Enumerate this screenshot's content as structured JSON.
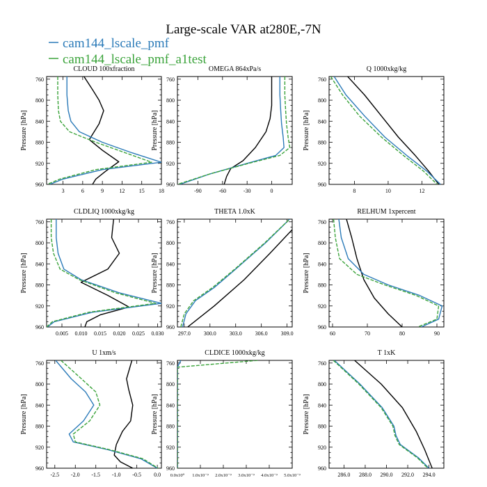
{
  "figure": {
    "title": "Large-scale VAR at280E,-7N",
    "legend": [
      {
        "name": "cam144_lscale_pmf",
        "color": "#2a7ab8"
      },
      {
        "name": "cam144_lscale_pmf_a1test",
        "color": "#3aa33a"
      }
    ]
  },
  "chart_data": [
    {
      "type": "line",
      "title": "CLOUD  100xfraction",
      "ylabel": "Pressure [hPa]",
      "xlim": [
        0.5,
        18
      ],
      "ylim": [
        960,
        755
      ],
      "xticks": [
        3,
        6,
        9,
        12,
        15,
        18
      ],
      "xtick_labels": [
        "3",
        "6",
        "9",
        "12",
        "15",
        "18"
      ],
      "yticks": [
        760,
        800,
        840,
        880,
        920,
        960
      ],
      "series": [
        {
          "color": "#000000",
          "x": [
            6.2,
            7.5,
            8.5,
            9.2,
            8.5,
            7.0,
            9.0,
            11.5,
            9.5,
            8.0,
            7.5
          ],
          "y": [
            755,
            780,
            800,
            820,
            845,
            875,
            895,
            917,
            935,
            950,
            960
          ]
        },
        {
          "color": "#2a7ab8",
          "x": [
            3.6,
            3.6,
            3.8,
            4.2,
            5.5,
            9.0,
            13.5,
            18.0,
            9.0,
            3.0,
            1.0
          ],
          "y": [
            755,
            790,
            820,
            840,
            860,
            880,
            900,
            918,
            932,
            950,
            960
          ]
        },
        {
          "color": "#3aa33a",
          "dash": "5,2",
          "x": [
            2.2,
            2.2,
            2.3,
            2.6,
            4.0,
            8.0,
            12.5,
            16.5,
            8.0,
            2.5,
            0.6
          ],
          "y": [
            755,
            790,
            820,
            840,
            860,
            880,
            900,
            918,
            932,
            950,
            960
          ]
        }
      ]
    },
    {
      "type": "line",
      "title": "OMEGA  864xPa/s",
      "ylabel": "Pressure [hPa]",
      "xlim": [
        -115,
        25
      ],
      "ylim": [
        960,
        755
      ],
      "xticks": [
        -90,
        -60,
        -30,
        0
      ],
      "xtick_labels": [
        "-90",
        "-60",
        "-30",
        "0"
      ],
      "yticks": [
        760,
        800,
        840,
        880,
        920,
        960
      ],
      "series": [
        {
          "color": "#000000",
          "x": [
            0,
            0,
            0,
            -2,
            -7,
            -20,
            -35,
            -50,
            -55,
            -58
          ],
          "y": [
            755,
            790,
            810,
            835,
            860,
            890,
            915,
            930,
            945,
            960
          ]
        },
        {
          "color": "#2a7ab8",
          "x": [
            10,
            10,
            11,
            12,
            14,
            15,
            5,
            -30,
            -75,
            -112
          ],
          "y": [
            755,
            790,
            820,
            845,
            870,
            890,
            905,
            920,
            940,
            960
          ]
        },
        {
          "color": "#3aa33a",
          "dash": "5,2",
          "x": [
            16,
            16,
            17,
            18,
            20,
            22,
            10,
            -28,
            -75,
            -115
          ],
          "y": [
            755,
            790,
            820,
            845,
            870,
            890,
            905,
            920,
            940,
            960
          ]
        }
      ]
    },
    {
      "type": "line",
      "title": "Q  1000xkg/kg",
      "ylabel": "Pressure [hPa]",
      "xlim": [
        6.5,
        13.3
      ],
      "ylim": [
        960,
        755
      ],
      "xticks": [
        8,
        10,
        12
      ],
      "xtick_labels": [
        "8",
        "10",
        "12"
      ],
      "yticks": [
        760,
        800,
        840,
        880,
        920,
        960
      ],
      "series": [
        {
          "color": "#000000",
          "x": [
            7.6,
            8.6,
            9.6,
            10.6,
            11.6,
            12.4,
            13.0
          ],
          "y": [
            755,
            790,
            830,
            870,
            905,
            935,
            960
          ]
        },
        {
          "color": "#2a7ab8",
          "x": [
            6.8,
            7.5,
            8.6,
            9.8,
            11.1,
            12.3,
            13.1
          ],
          "y": [
            755,
            790,
            830,
            870,
            905,
            935,
            960
          ]
        },
        {
          "color": "#3aa33a",
          "dash": "5,2",
          "x": [
            6.6,
            7.3,
            8.3,
            9.6,
            10.9,
            12.1,
            12.9
          ],
          "y": [
            755,
            790,
            830,
            870,
            905,
            935,
            960
          ]
        }
      ]
    },
    {
      "type": "line",
      "title": "CLDLIQ  1000xkg/kg",
      "ylabel": "Pressure [hPa]",
      "xlim": [
        0.001,
        0.031
      ],
      "ylim": [
        960,
        755
      ],
      "xticks": [
        0.005,
        0.01,
        0.015,
        0.02,
        0.025,
        0.03
      ],
      "xtick_labels": [
        "0.005",
        "0.010",
        "0.015",
        "0.020",
        "0.025",
        "0.030"
      ],
      "yticks": [
        760,
        800,
        840,
        880,
        920,
        960
      ],
      "series": [
        {
          "color": "#000000",
          "x": [
            0.0185,
            0.018,
            0.02,
            0.017,
            0.01,
            0.017,
            0.0225,
            0.015,
            0.0115,
            0.011
          ],
          "y": [
            755,
            790,
            820,
            850,
            875,
            900,
            922,
            937,
            950,
            960
          ]
        },
        {
          "color": "#2a7ab8",
          "x": [
            0.0035,
            0.0035,
            0.004,
            0.0055,
            0.01,
            0.02,
            0.031,
            0.013,
            0.003,
            0.0012
          ],
          "y": [
            755,
            790,
            820,
            850,
            870,
            895,
            915,
            932,
            950,
            960
          ]
        },
        {
          "color": "#3aa33a",
          "dash": "5,2",
          "x": [
            0.0022,
            0.0022,
            0.0028,
            0.0045,
            0.0095,
            0.019,
            0.0295,
            0.012,
            0.0025,
            0.001
          ],
          "y": [
            755,
            790,
            820,
            850,
            870,
            895,
            915,
            932,
            950,
            960
          ]
        }
      ]
    },
    {
      "type": "line",
      "title": "THETA  1.0xK",
      "ylabel": "Pressure [hPa]",
      "xlim": [
        296.2,
        309.6
      ],
      "ylim": [
        960,
        755
      ],
      "xticks": [
        297,
        300,
        303,
        306,
        309
      ],
      "xtick_labels": [
        "297.0",
        "300.0",
        "303.0",
        "306.0",
        "309.0"
      ],
      "yticks": [
        760,
        800,
        840,
        880,
        920,
        960
      ],
      "series": [
        {
          "color": "#000000",
          "x": [
            297.4,
            300.5,
            304.0,
            307.0,
            309.6
          ],
          "y": [
            960,
            920,
            870,
            820,
            775
          ]
        },
        {
          "color": "#2a7ab8",
          "x": [
            296.8,
            297.2,
            298.3,
            300.5,
            303.0,
            306.5,
            309.3
          ],
          "y": [
            960,
            935,
            910,
            885,
            850,
            800,
            755
          ]
        },
        {
          "color": "#3aa33a",
          "dash": "5,2",
          "x": [
            296.6,
            297.0,
            298.1,
            300.3,
            302.9,
            306.4,
            309.3
          ],
          "y": [
            960,
            935,
            910,
            885,
            850,
            800,
            755
          ]
        }
      ]
    },
    {
      "type": "line",
      "title": "RELHUM  1xpercent",
      "ylabel": "Pressure [hPa]",
      "xlim": [
        59,
        92
      ],
      "ylim": [
        960,
        755
      ],
      "xticks": [
        60,
        70,
        80,
        90
      ],
      "xtick_labels": [
        "60",
        "70",
        "80",
        "90"
      ],
      "yticks": [
        760,
        800,
        840,
        880,
        920,
        960
      ],
      "series": [
        {
          "color": "#000000",
          "x": [
            64.0,
            65.5,
            67.0,
            69.0,
            72.0,
            76.0,
            80.0
          ],
          "y": [
            755,
            790,
            830,
            870,
            905,
            935,
            960
          ]
        },
        {
          "color": "#2a7ab8",
          "x": [
            61.8,
            62.5,
            64.5,
            69.0,
            76.0,
            85.0,
            91.5,
            90.5,
            85.5
          ],
          "y": [
            755,
            790,
            830,
            860,
            880,
            900,
            920,
            945,
            960
          ]
        },
        {
          "color": "#3aa33a",
          "dash": "5,2",
          "x": [
            60.3,
            60.8,
            62.0,
            67.0,
            75.0,
            84.0,
            90.5,
            90.0,
            84.5
          ],
          "y": [
            755,
            790,
            830,
            860,
            880,
            900,
            920,
            945,
            960
          ]
        }
      ]
    },
    {
      "type": "line",
      "title": "U  1xm/s",
      "ylabel": "Pressure [hPa]",
      "xlim": [
        -2.7,
        0.1
      ],
      "ylim": [
        960,
        755
      ],
      "xticks": [
        -2.5,
        -2.0,
        -1.5,
        -1.0,
        -0.5,
        0.0
      ],
      "xtick_labels": [
        "-2.5",
        "-2.0",
        "-1.5",
        "-1.0",
        "-0.5",
        "0.0"
      ],
      "yticks": [
        760,
        800,
        840,
        880,
        920,
        960
      ],
      "series": [
        {
          "color": "#000000",
          "x": [
            -0.62,
            -0.75,
            -0.7,
            -0.6,
            -0.65,
            -0.85,
            -1.0,
            -1.05,
            -0.9,
            -0.6
          ],
          "y": [
            755,
            790,
            810,
            840,
            870,
            890,
            915,
            935,
            948,
            960
          ]
        },
        {
          "color": "#2a7ab8",
          "x": [
            -2.48,
            -2.1,
            -1.75,
            -1.55,
            -1.8,
            -2.15,
            -2.05,
            -1.2,
            -0.4,
            0.0
          ],
          "y": [
            755,
            790,
            815,
            840,
            870,
            895,
            910,
            925,
            942,
            960
          ]
        },
        {
          "color": "#3aa33a",
          "dash": "5,2",
          "x": [
            -2.35,
            -1.85,
            -1.5,
            -1.4,
            -1.65,
            -2.05,
            -2.0,
            -1.15,
            -0.35,
            0.02
          ],
          "y": [
            755,
            790,
            815,
            840,
            870,
            895,
            910,
            925,
            942,
            960
          ]
        }
      ]
    },
    {
      "type": "line",
      "title": "CLDICE  1000xkg/kg",
      "ylabel": "Pressure [hPa]",
      "xlim": [
        0,
        1
      ],
      "ylim": [
        960,
        755
      ],
      "xticks": [
        0,
        0.2,
        0.4,
        0.6,
        0.8,
        1.0
      ],
      "xtick_labels": [
        "0.0x10⁰",
        "1.0x10⁻⁹",
        "2.0x10⁻⁹",
        "3.0x10⁻⁹",
        "4.0x10⁻⁹",
        "5.0x10⁻⁹"
      ],
      "yticks": [
        760,
        800,
        840,
        880,
        920,
        960
      ],
      "series": [
        {
          "color": "#000000",
          "x": [
            0,
            0
          ],
          "y": [
            755,
            960
          ]
        },
        {
          "color": "#2a7ab8",
          "x": [
            0.03,
            0.0,
            0.0
          ],
          "y": [
            755,
            768,
            960
          ]
        },
        {
          "color": "#3aa33a",
          "dash": "5,2",
          "x": [
            0.7,
            0.0,
            0.0
          ],
          "y": [
            755,
            768,
            960
          ]
        }
      ]
    },
    {
      "type": "line",
      "title": "T  1xK",
      "ylabel": "Pressure [hPa]",
      "xlim": [
        284.6,
        295.4
      ],
      "ylim": [
        960,
        755
      ],
      "xticks": [
        286,
        288,
        290,
        292,
        294
      ],
      "xtick_labels": [
        "286.0",
        "288.0",
        "290.0",
        "292.0",
        "294.0"
      ],
      "yticks": [
        760,
        800,
        840,
        880,
        920,
        960
      ],
      "series": [
        {
          "color": "#000000",
          "x": [
            287.0,
            289.5,
            291.5,
            292.8,
            293.6,
            294.3
          ],
          "y": [
            755,
            800,
            845,
            890,
            925,
            960
          ]
        },
        {
          "color": "#2a7ab8",
          "x": [
            285.1,
            287.5,
            289.6,
            290.7,
            290.9,
            291.3,
            293.0,
            294.0
          ],
          "y": [
            755,
            800,
            845,
            880,
            898,
            915,
            940,
            960
          ]
        },
        {
          "color": "#3aa33a",
          "dash": "5,2",
          "x": [
            285.0,
            287.4,
            289.5,
            290.6,
            290.8,
            291.2,
            292.9,
            293.9
          ],
          "y": [
            755,
            800,
            845,
            880,
            898,
            915,
            940,
            960
          ]
        }
      ]
    }
  ]
}
